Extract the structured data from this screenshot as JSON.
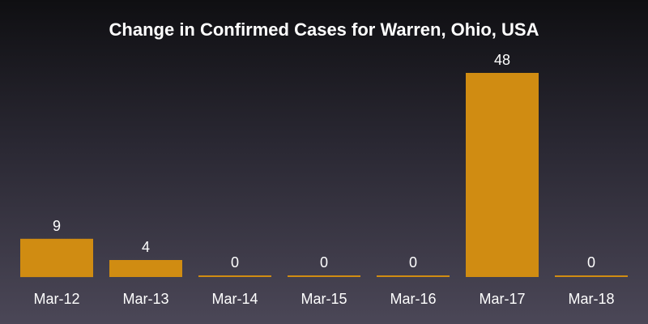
{
  "chart_data": {
    "type": "bar",
    "title": "Change in Confirmed Cases for Warren, Ohio, USA",
    "xlabel": "",
    "ylabel": "",
    "categories": [
      "Mar-12",
      "Mar-13",
      "Mar-14",
      "Mar-15",
      "Mar-16",
      "Mar-17",
      "Mar-18"
    ],
    "values": [
      9,
      4,
      0,
      0,
      0,
      48,
      0
    ],
    "ylim": [
      0,
      48
    ],
    "grid": false,
    "bar_color": "#d08c12",
    "text_color": "#ffffff"
  }
}
